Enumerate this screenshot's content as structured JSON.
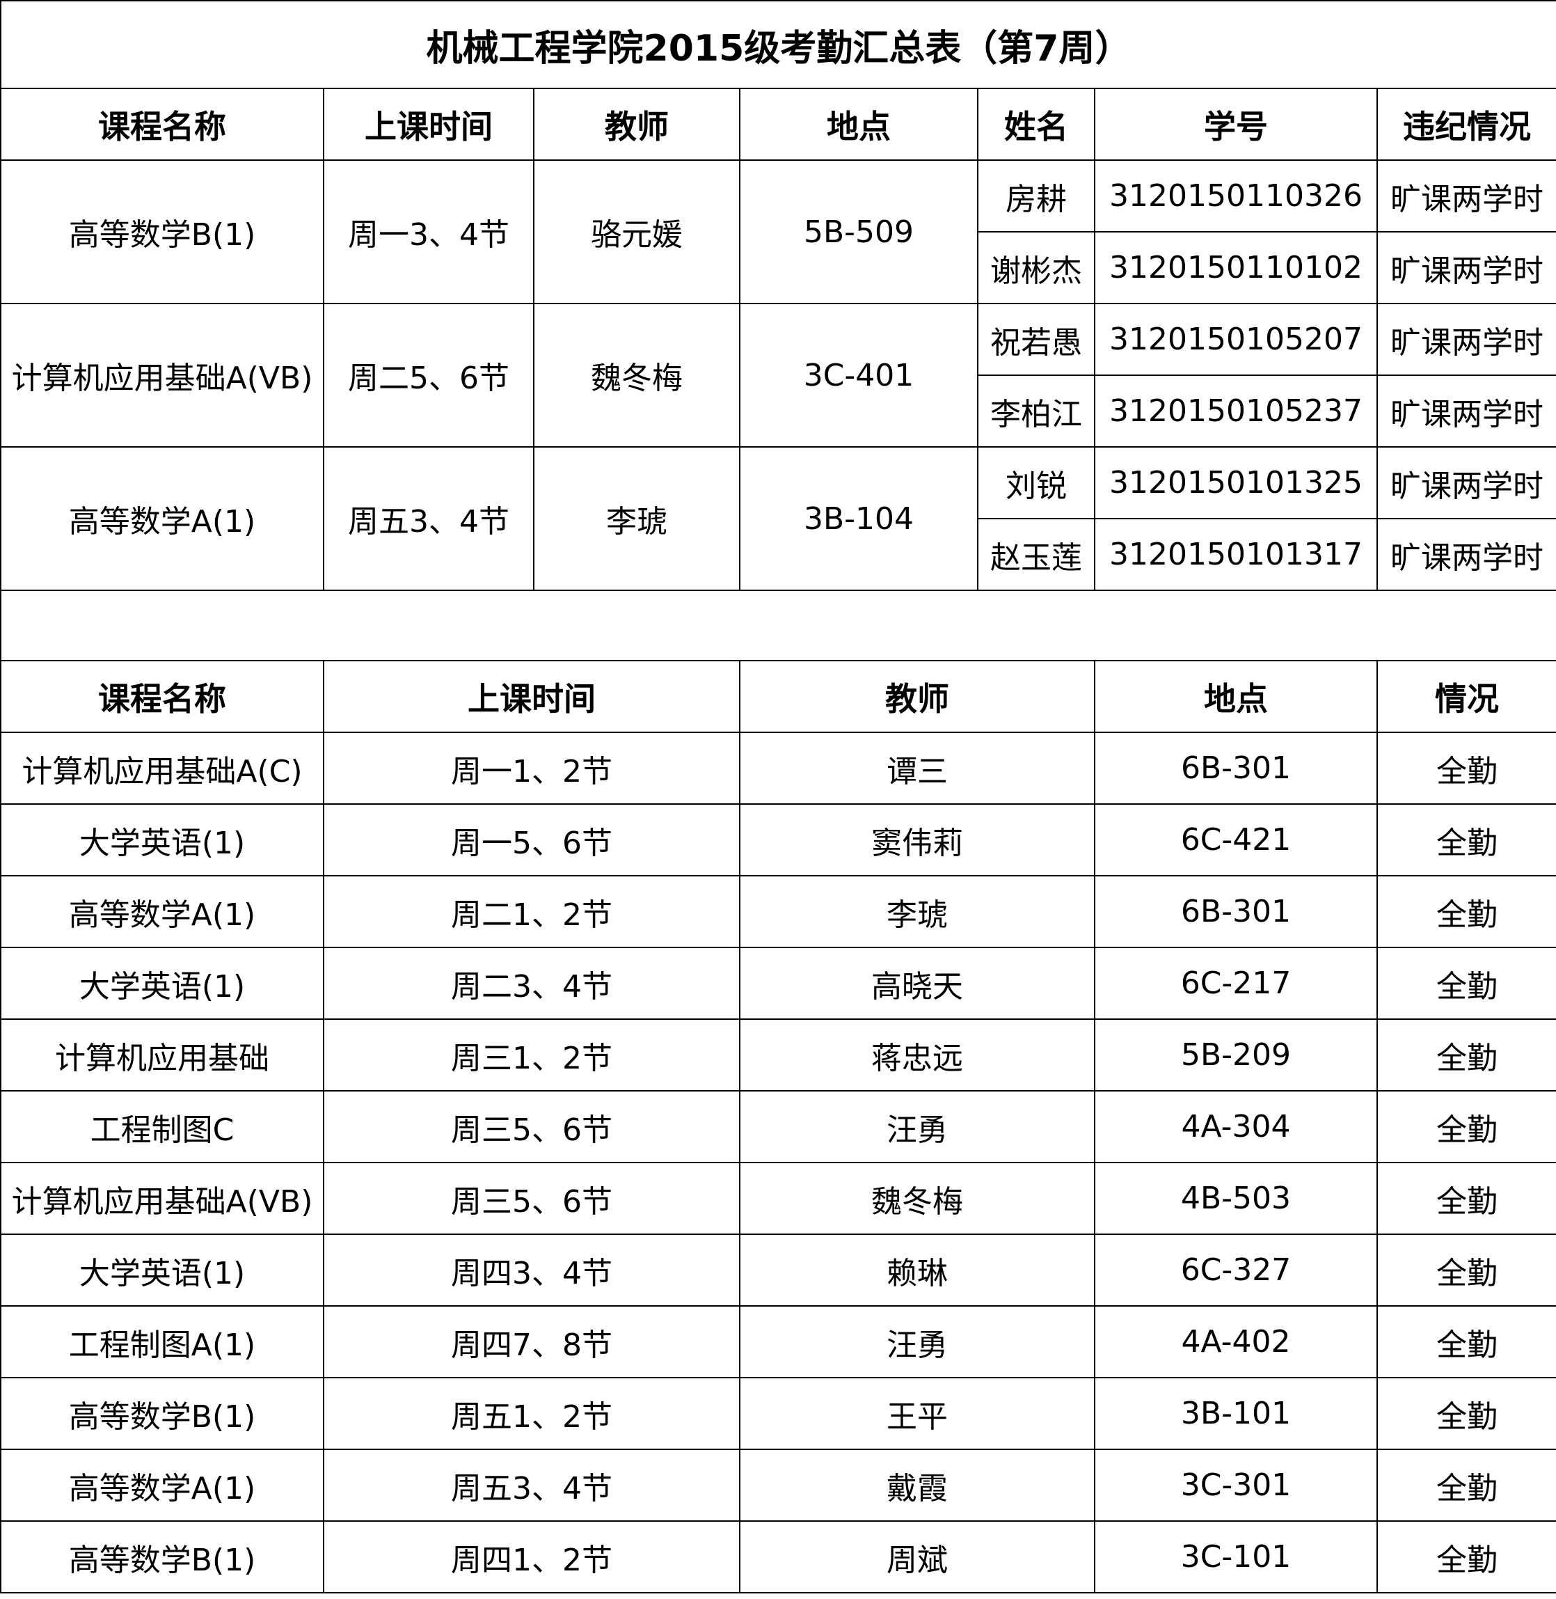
{
  "title": "机械工程学院2015级考勤汇总表（第7周）",
  "violations": {
    "headers": [
      "课程名称",
      "上课时间",
      "教师",
      "地点",
      "姓名",
      "学号",
      "违纪情况"
    ],
    "courses": [
      {
        "course": "高等数学B(1)",
        "time": "周一3、4节",
        "teacher": "骆元媛",
        "location": "5B-509",
        "students": [
          {
            "name": "房耕",
            "id": "3120150110326",
            "status": "旷课两学时"
          },
          {
            "name": "谢彬杰",
            "id": "3120150110102",
            "status": "旷课两学时"
          }
        ]
      },
      {
        "course": "计算机应用基础A(VB)",
        "time": "周二5、6节",
        "teacher": "魏冬梅",
        "location": "3C-401",
        "students": [
          {
            "name": "祝若愚",
            "id": "3120150105207",
            "status": "旷课两学时"
          },
          {
            "name": "李柏江",
            "id": "3120150105237",
            "status": "旷课两学时"
          }
        ]
      },
      {
        "course": "高等数学A(1)",
        "time": "周五3、4节",
        "teacher": "李琥",
        "location": "3B-104",
        "students": [
          {
            "name": "刘锐",
            "id": "3120150101325",
            "status": "旷课两学时"
          },
          {
            "name": "赵玉莲",
            "id": "3120150101317",
            "status": "旷课两学时"
          }
        ]
      }
    ]
  },
  "attendance": {
    "headers": [
      "课程名称",
      "上课时间",
      "教师",
      "地点",
      "情况"
    ],
    "rows": [
      [
        "计算机应用基础A(C)",
        "周一1、2节",
        "谭三",
        "6B-301",
        "全勤"
      ],
      [
        "大学英语(1)",
        "周一5、6节",
        "窦伟莉",
        "6C-421",
        "全勤"
      ],
      [
        "高等数学A(1)",
        "周二1、2节",
        "李琥",
        "6B-301",
        "全勤"
      ],
      [
        "大学英语(1)",
        "周二3、4节",
        "高晓天",
        "6C-217",
        "全勤"
      ],
      [
        "计算机应用基础",
        "周三1、2节",
        "蒋忠远",
        "5B-209",
        "全勤"
      ],
      [
        "工程制图C",
        "周三5、6节",
        "汪勇",
        "4A-304",
        "全勤"
      ],
      [
        "计算机应用基础A(VB)",
        "周三5、6节",
        "魏冬梅",
        "4B-503",
        "全勤"
      ],
      [
        "大学英语(1)",
        "周四3、4节",
        "赖琳",
        "6C-327",
        "全勤"
      ],
      [
        "工程制图A(1)",
        "周四7、8节",
        "汪勇",
        "4A-402",
        "全勤"
      ],
      [
        "高等数学B(1)",
        "周五1、2节",
        "王平",
        "3B-101",
        "全勤"
      ],
      [
        "高等数学A(1)",
        "周五3、4节",
        "戴霞",
        "3C-301",
        "全勤"
      ],
      [
        "高等数学B(1)",
        "周四1、2节",
        "周斌",
        "3C-101",
        "全勤"
      ]
    ]
  }
}
